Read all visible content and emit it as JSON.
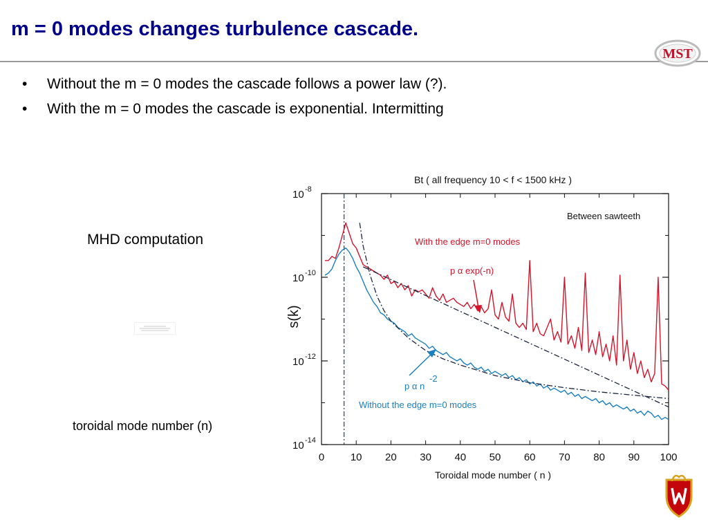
{
  "slide": {
    "title": "m = 0 modes changes turbulence cascade.",
    "logo_text": "MST",
    "bullets": [
      "Without the m = 0 modes the cascade follows a power law (?).",
      "With the m = 0 modes the cascade is exponential. Intermitting"
    ],
    "mhd_label": "MHD computation",
    "toroidal_label": "toroidal mode number (n)",
    "bullet_glyph": "•"
  },
  "colors": {
    "title": "#00008b",
    "with_m0": "#d4142a",
    "without_m0": "#1a7fc0"
  },
  "chart_data": {
    "type": "line",
    "title": "Bt ( all frequency  10 < f < 1500 kHz )",
    "xlabel": "Toroidal mode number ( n )",
    "ylabel": "s(k)",
    "xlim": [
      0,
      100
    ],
    "ylim_log10": [
      -14,
      -8
    ],
    "x_ticks": [
      "0",
      "10",
      "20",
      "30",
      "40",
      "50",
      "60",
      "70",
      "80",
      "90",
      "100"
    ],
    "y_ticks": [
      {
        "base": "10",
        "exp": "-8",
        "log": -8
      },
      {
        "base": "10",
        "exp": "-10",
        "log": -10
      },
      {
        "base": "10",
        "exp": "-12",
        "log": -12
      },
      {
        "base": "10",
        "exp": "-14",
        "log": -14
      }
    ],
    "vline_x": 6.5,
    "annotations": {
      "regime": "Between sawteeth",
      "with_label": "With the edge m=0 modes",
      "without_label": "Without the edge m=0 modes",
      "exp_fit_label": "p α exp(-n)",
      "power_fit_label": "p α n",
      "power_fit_exp": "-2"
    },
    "series": [
      {
        "name": "With the edge m=0 modes",
        "color": "#d4142a",
        "x": [
          1,
          2,
          3,
          4,
          5,
          6,
          7,
          8,
          9,
          10,
          11,
          12,
          13,
          14,
          15,
          16,
          17,
          18,
          19,
          20,
          21,
          22,
          23,
          24,
          25,
          26,
          27,
          28,
          29,
          30,
          31,
          32,
          33,
          34,
          35,
          36,
          37,
          38,
          39,
          40,
          41,
          42,
          43,
          44,
          45,
          46,
          47,
          48,
          49,
          50,
          51,
          52,
          53,
          54,
          55,
          56,
          57,
          58,
          59,
          60,
          61,
          62,
          63,
          64,
          65,
          66,
          67,
          68,
          69,
          70,
          71,
          72,
          73,
          74,
          75,
          76,
          77,
          78,
          79,
          80,
          81,
          82,
          83,
          84,
          85,
          86,
          87,
          88,
          89,
          90,
          91,
          92,
          93,
          94,
          95,
          96,
          97,
          98,
          99,
          100
        ],
        "log10_y": [
          -9.6,
          -9.6,
          -9.5,
          -9.55,
          -9.3,
          -9.0,
          -8.7,
          -8.95,
          -9.2,
          -9.3,
          -9.5,
          -9.7,
          -9.75,
          -9.8,
          -9.85,
          -9.9,
          -9.95,
          -10.05,
          -9.95,
          -10.15,
          -10.1,
          -10.25,
          -10.15,
          -10.3,
          -10.2,
          -10.45,
          -10.3,
          -10.35,
          -10.3,
          -10.4,
          -10.5,
          -10.25,
          -10.45,
          -10.55,
          -10.4,
          -10.6,
          -10.55,
          -10.5,
          -10.6,
          -10.65,
          -10.7,
          -10.6,
          -10.75,
          -10.65,
          -10.8,
          -10.7,
          -10.85,
          -10.75,
          -10.3,
          -10.9,
          -11.0,
          -10.6,
          -10.95,
          -11.05,
          -10.4,
          -11.1,
          -11.2,
          -11.1,
          -11.25,
          -9.6,
          -11.3,
          -11.1,
          -11.35,
          -11.4,
          -11.2,
          -11.0,
          -11.5,
          -11.3,
          -11.55,
          -10.0,
          -11.6,
          -11.4,
          -11.7,
          -11.2,
          -11.75,
          -9.9,
          -11.8,
          -11.5,
          -11.85,
          -11.3,
          -11.9,
          -11.6,
          -12.0,
          -11.4,
          -12.1,
          -9.95,
          -12.0,
          -11.5,
          -12.2,
          -11.8,
          -12.3,
          -12.0,
          -12.4,
          -12.2,
          -12.5,
          -12.3,
          -10.0,
          -12.55,
          -12.6,
          -12.7
        ]
      },
      {
        "name": "Without the edge m=0 modes",
        "color": "#1a7fc0",
        "x": [
          1,
          2,
          3,
          4,
          5,
          6,
          7,
          8,
          9,
          10,
          11,
          12,
          13,
          14,
          15,
          16,
          17,
          18,
          19,
          20,
          21,
          22,
          23,
          24,
          25,
          26,
          27,
          28,
          29,
          30,
          31,
          32,
          33,
          34,
          35,
          36,
          37,
          38,
          39,
          40,
          41,
          42,
          43,
          44,
          45,
          46,
          47,
          48,
          49,
          50,
          51,
          52,
          53,
          54,
          55,
          56,
          57,
          58,
          59,
          60,
          61,
          62,
          63,
          64,
          65,
          66,
          67,
          68,
          69,
          70,
          71,
          72,
          73,
          74,
          75,
          76,
          77,
          78,
          79,
          80,
          81,
          82,
          83,
          84,
          85,
          86,
          87,
          88,
          89,
          90,
          91,
          92,
          93,
          94,
          95,
          96,
          97,
          98,
          99,
          100
        ],
        "log10_y": [
          -9.95,
          -9.9,
          -9.8,
          -9.6,
          -9.45,
          -9.35,
          -9.3,
          -9.4,
          -9.55,
          -9.75,
          -9.9,
          -10.1,
          -10.3,
          -10.45,
          -10.6,
          -10.7,
          -10.85,
          -10.9,
          -11.0,
          -11.05,
          -11.1,
          -11.2,
          -11.25,
          -11.3,
          -11.4,
          -11.35,
          -11.45,
          -11.5,
          -11.55,
          -11.6,
          -11.7,
          -11.65,
          -11.75,
          -11.8,
          -11.85,
          -11.8,
          -11.9,
          -11.95,
          -12.0,
          -11.95,
          -12.05,
          -12.1,
          -12.05,
          -12.15,
          -12.2,
          -12.15,
          -12.25,
          -12.2,
          -12.3,
          -12.25,
          -12.3,
          -12.35,
          -12.3,
          -12.4,
          -12.35,
          -12.45,
          -12.4,
          -12.5,
          -12.45,
          -12.55,
          -12.5,
          -12.6,
          -12.55,
          -12.65,
          -12.6,
          -12.7,
          -12.65,
          -12.7,
          -12.75,
          -12.7,
          -12.8,
          -12.75,
          -12.85,
          -12.8,
          -12.9,
          -12.85,
          -12.9,
          -12.95,
          -12.9,
          -13.0,
          -12.95,
          -13.05,
          -13.0,
          -13.1,
          -13.05,
          -13.1,
          -13.15,
          -13.1,
          -13.2,
          -13.15,
          -13.25,
          -13.2,
          -13.3,
          -13.2,
          -13.25,
          -13.35,
          -13.3,
          -13.4,
          -13.35,
          -13.4
        ]
      },
      {
        "name": "p α exp(-n)",
        "style": "dash-dot",
        "x": [
          12,
          100
        ],
        "log10_y": [
          -9.75,
          -13.1
        ]
      },
      {
        "name": "p α n-2",
        "style": "dash-dot",
        "x": [
          11,
          12,
          14,
          16,
          18,
          20,
          25,
          30,
          35,
          40,
          50,
          60,
          70,
          80,
          90,
          100
        ],
        "log10_y": [
          -8.7,
          -9.25,
          -9.95,
          -10.45,
          -10.8,
          -11.05,
          -11.45,
          -11.75,
          -11.95,
          -12.1,
          -12.35,
          -12.52,
          -12.64,
          -12.74,
          -12.82,
          -12.9
        ]
      }
    ]
  }
}
